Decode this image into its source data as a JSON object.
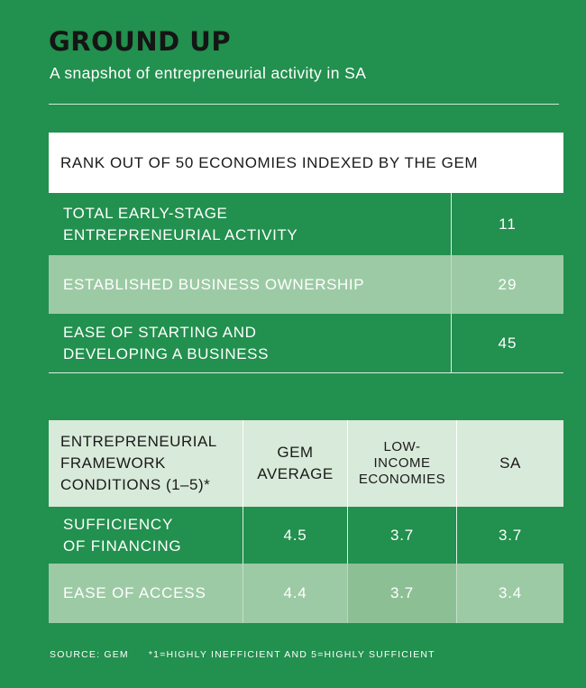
{
  "header": {
    "title": "GROUND UP",
    "subtitle": "A snapshot of entrepreneurial activity in SA"
  },
  "rank_table": {
    "heading": "RANK OUT OF 50 ECONOMIES INDEXED BY THE GEM",
    "rows": [
      {
        "label_line1": "TOTAL EARLY-STAGE",
        "label_line2": "ENTREPRENEURIAL ACTIVITY",
        "value": "11"
      },
      {
        "label_line1": "ESTABLISHED BUSINESS OWNERSHIP",
        "label_line2": "",
        "value": "29"
      },
      {
        "label_line1": "EASE OF STARTING AND",
        "label_line2": "DEVELOPING A BUSINESS",
        "value": "45"
      }
    ]
  },
  "framework_table": {
    "headers": {
      "col1": [
        "ENTREPRENEURIAL",
        "FRAMEWORK",
        "CONDITIONS (1–5)*"
      ],
      "col2": [
        "GEM",
        "AVERAGE"
      ],
      "col3": [
        "LOW-",
        "INCOME",
        "ECONOMIES"
      ],
      "col4": [
        "SA"
      ]
    },
    "rows": [
      {
        "label_line1": "SUFFICIENCY",
        "label_line2": "OF FINANCING",
        "gem_average": "4.5",
        "low_income": "3.7",
        "sa": "3.7"
      },
      {
        "label_line1": "EASE OF ACCESS",
        "label_line2": "",
        "gem_average": "4.4",
        "low_income": "3.7",
        "sa": "3.4"
      }
    ]
  },
  "footer": {
    "source": "SOURCE: GEM",
    "note": "*1=HIGHLY INEFFICIENT AND 5=HIGHLY SUFFICIENT"
  },
  "colors": {
    "background": "#22904e",
    "row_shade": "#9ccaa4",
    "header_shade": "#d8ead9",
    "title": "#151515"
  }
}
